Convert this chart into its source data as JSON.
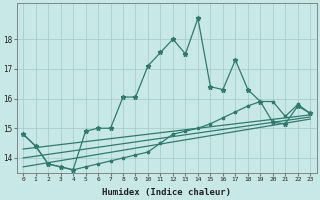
{
  "xlabel": "Humidex (Indice chaleur)",
  "x_values": [
    0,
    1,
    2,
    3,
    4,
    5,
    6,
    7,
    8,
    9,
    10,
    11,
    12,
    13,
    14,
    15,
    16,
    17,
    18,
    19,
    20,
    21,
    22,
    23
  ],
  "line1": [
    14.8,
    14.4,
    13.8,
    13.7,
    13.6,
    14.9,
    15.0,
    15.0,
    16.05,
    16.05,
    17.1,
    17.55,
    18.0,
    17.5,
    18.7,
    16.4,
    16.3,
    17.3,
    16.3,
    15.9,
    15.2,
    15.15,
    15.75,
    15.5
  ],
  "line2": [
    14.8,
    14.4,
    13.8,
    13.7,
    13.6,
    13.7,
    13.8,
    13.9,
    14.0,
    14.1,
    14.2,
    14.5,
    14.8,
    14.9,
    15.0,
    15.15,
    15.35,
    15.55,
    15.75,
    15.9,
    15.9,
    15.4,
    15.8,
    15.5
  ],
  "line_reg1": [
    14.3,
    14.35,
    14.4,
    14.45,
    14.5,
    14.55,
    14.6,
    14.65,
    14.7,
    14.75,
    14.8,
    14.85,
    14.9,
    14.95,
    15.0,
    15.05,
    15.1,
    15.15,
    15.2,
    15.25,
    15.3,
    15.35,
    15.4,
    15.45
  ],
  "line_reg2": [
    14.0,
    14.06,
    14.12,
    14.18,
    14.24,
    14.3,
    14.36,
    14.42,
    14.48,
    14.54,
    14.6,
    14.66,
    14.72,
    14.78,
    14.84,
    14.9,
    14.96,
    15.02,
    15.08,
    15.14,
    15.2,
    15.26,
    15.32,
    15.38
  ],
  "line_reg3": [
    13.7,
    13.77,
    13.84,
    13.91,
    13.98,
    14.05,
    14.12,
    14.19,
    14.26,
    14.33,
    14.4,
    14.47,
    14.54,
    14.61,
    14.68,
    14.75,
    14.82,
    14.89,
    14.96,
    15.03,
    15.1,
    15.17,
    15.24,
    15.31
  ],
  "line_color": "#2e7b6e",
  "bg_color": "#c8e8e8",
  "grid_color": "#aacece",
  "ylim": [
    13.5,
    19.2
  ],
  "yticks": [
    14,
    15,
    16,
    17,
    18
  ],
  "markersize": 3.5,
  "linewidth": 0.9
}
